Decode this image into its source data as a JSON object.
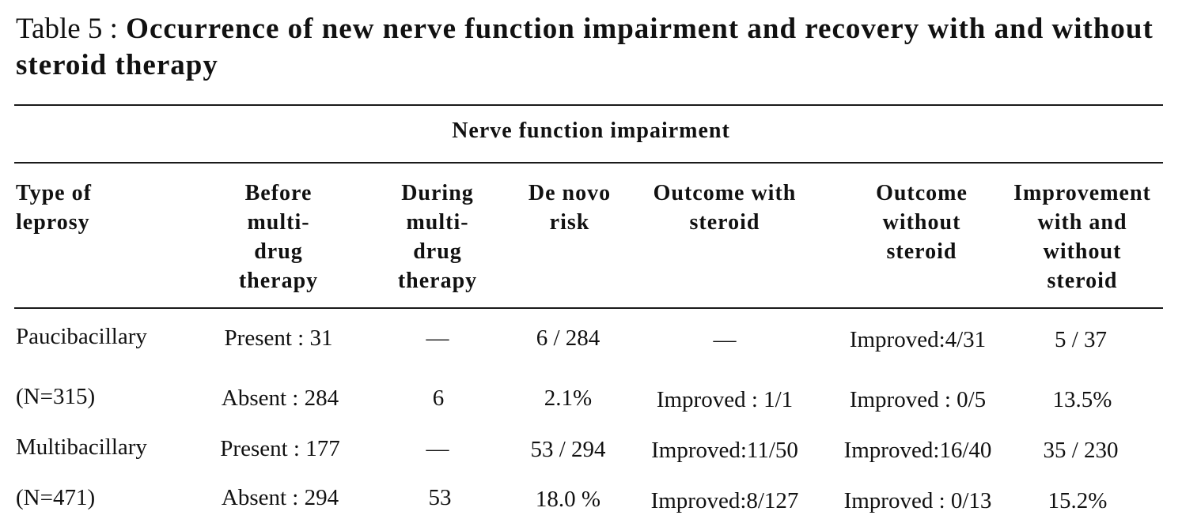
{
  "table": {
    "title_number": "Table 5 :",
    "title_text": "Occurrence of new nerve function impairment and recovery with and without steroid therapy",
    "group_header": "Nerve function impairment",
    "columns": [
      "Type of\nleprosy",
      "Before\nmulti-\ndrug\ntherapy",
      "During\nmulti-\ndrug\ntherapy",
      "De novo\nrisk",
      "Outcome with\nsteroid",
      "Outcome\nwithout\nsteroid",
      "Improvement\nwith and\nwithout\nsteroid"
    ],
    "rows": [
      [
        "Paucibacillary",
        "Present : 31",
        "—",
        "6 / 284",
        "—",
        "Improved:4/31",
        "5 / 37"
      ],
      [
        "(N=315)",
        "Absent : 284",
        "6",
        "2.1%",
        "Improved : 1/1",
        "Improved : 0/5",
        "13.5%"
      ],
      [
        "Multibacillary",
        "Present : 177",
        "—",
        "53 / 294",
        "Improved:11/50",
        "Improved:16/40",
        "35 / 230"
      ],
      [
        "(N=471)",
        "Absent : 294",
        "53",
        "18.0 %",
        "Improved:8/127",
        "Improved : 0/13",
        "15.2%"
      ]
    ]
  }
}
